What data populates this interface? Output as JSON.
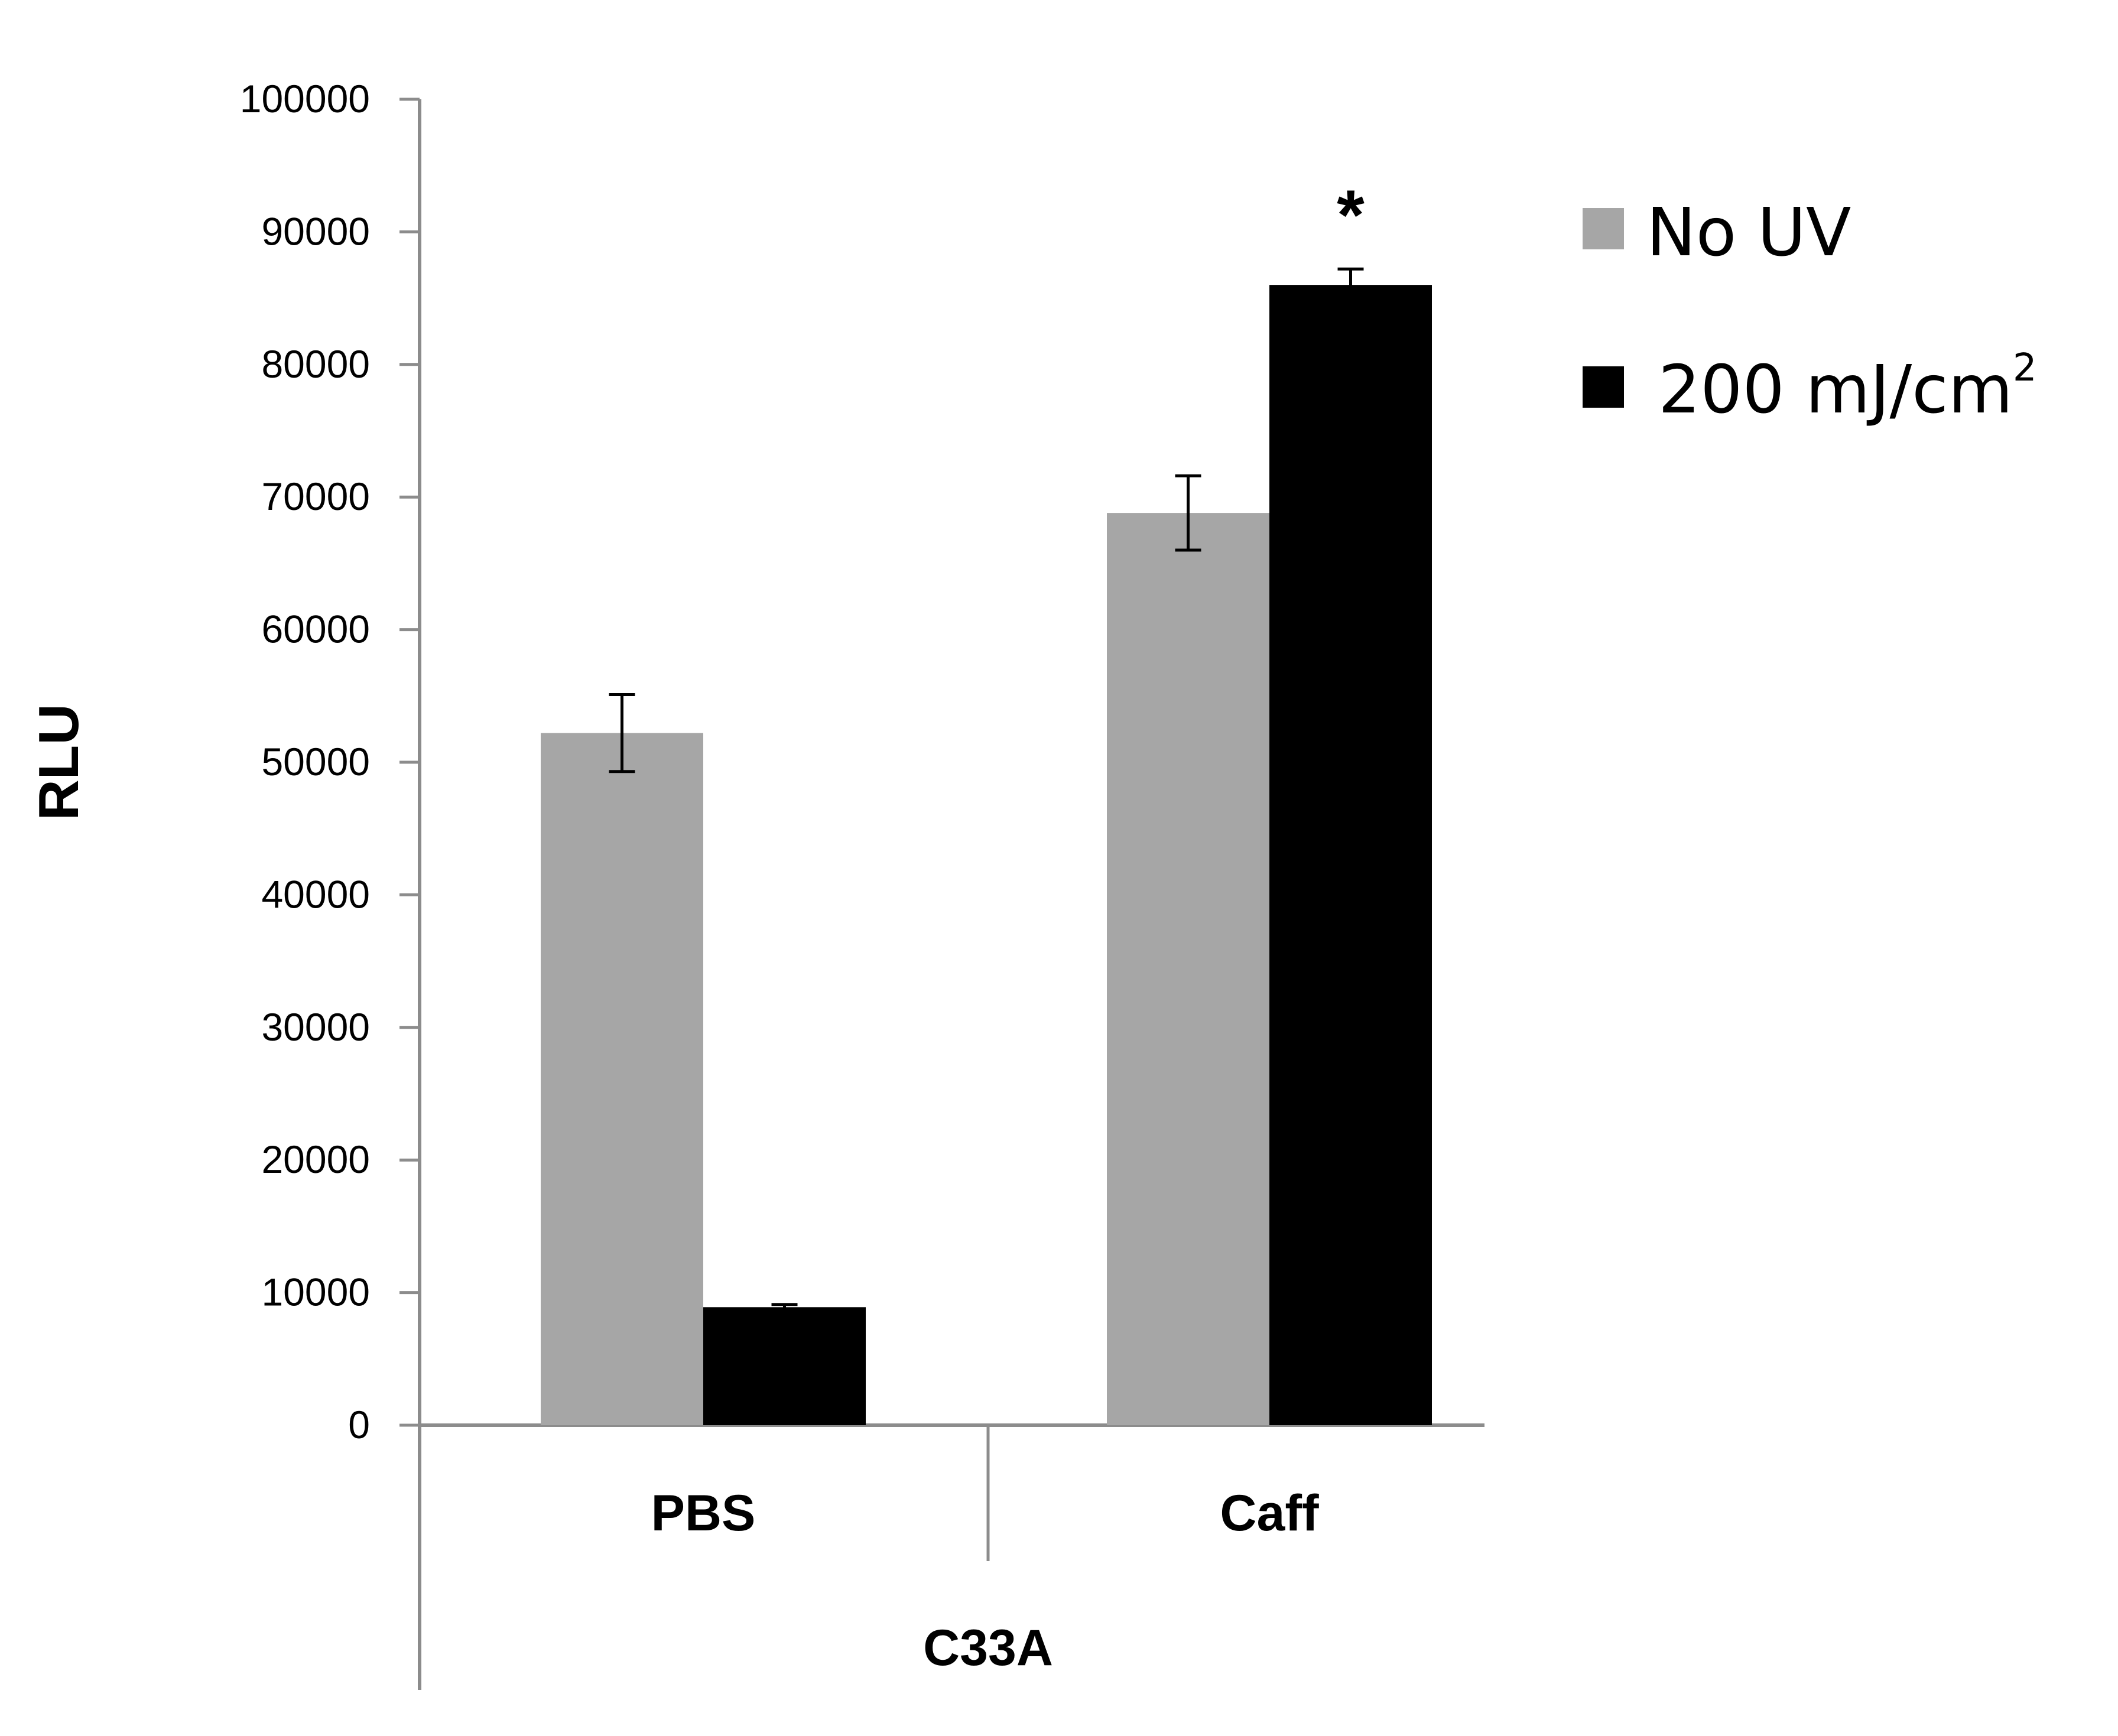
{
  "chart_data": {
    "type": "bar",
    "title": "",
    "ylabel": "RLU",
    "ylim": [
      0,
      100000
    ],
    "yticks": [
      0,
      10000,
      20000,
      30000,
      40000,
      50000,
      60000,
      70000,
      80000,
      90000,
      100000
    ],
    "group_label": "C33A",
    "categories": [
      "PBS",
      "Caff"
    ],
    "series": [
      {
        "name": "No UV",
        "color": "#a6a6a6",
        "values": [
          52200,
          68800
        ],
        "errors": [
          2900,
          2800
        ]
      },
      {
        "name": "200 mJ/cm",
        "name_superscript": "2",
        "color": "#000000",
        "values": [
          8900,
          86000
        ],
        "errors": [
          200,
          1200
        ]
      }
    ],
    "annotations": [
      {
        "text": "*",
        "category": "Caff",
        "series": "200 mJ/cm"
      }
    ],
    "legend_position": "top-right",
    "grid": false
  }
}
